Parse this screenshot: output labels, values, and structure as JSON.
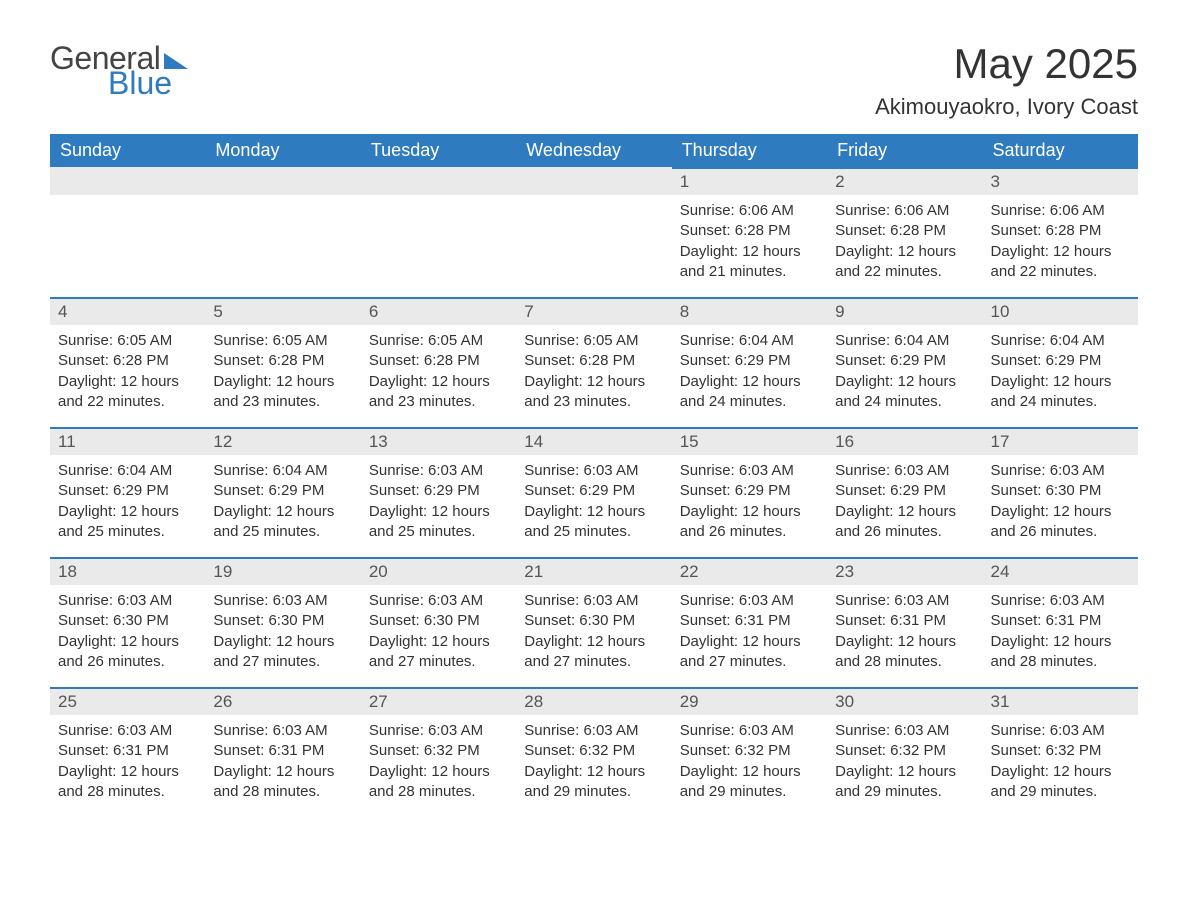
{
  "logo": {
    "word1": "General",
    "word2": "Blue"
  },
  "title": "May 2025",
  "location": "Akimouyaokro, Ivory Coast",
  "colors": {
    "accent": "#2f7bbf",
    "header_stripe_bg": "#eaeaea",
    "text": "#333333",
    "background": "#ffffff"
  },
  "typography": {
    "title_fontsize": 42,
    "location_fontsize": 22,
    "weekday_fontsize": 18,
    "daynum_fontsize": 17,
    "body_fontsize": 15
  },
  "calendar": {
    "type": "table",
    "columns": [
      "Sunday",
      "Monday",
      "Tuesday",
      "Wednesday",
      "Thursday",
      "Friday",
      "Saturday"
    ],
    "first_weekday_index": 4,
    "days": [
      {
        "n": 1,
        "sunrise": "6:06 AM",
        "sunset": "6:28 PM",
        "daylight": "12 hours and 21 minutes."
      },
      {
        "n": 2,
        "sunrise": "6:06 AM",
        "sunset": "6:28 PM",
        "daylight": "12 hours and 22 minutes."
      },
      {
        "n": 3,
        "sunrise": "6:06 AM",
        "sunset": "6:28 PM",
        "daylight": "12 hours and 22 minutes."
      },
      {
        "n": 4,
        "sunrise": "6:05 AM",
        "sunset": "6:28 PM",
        "daylight": "12 hours and 22 minutes."
      },
      {
        "n": 5,
        "sunrise": "6:05 AM",
        "sunset": "6:28 PM",
        "daylight": "12 hours and 23 minutes."
      },
      {
        "n": 6,
        "sunrise": "6:05 AM",
        "sunset": "6:28 PM",
        "daylight": "12 hours and 23 minutes."
      },
      {
        "n": 7,
        "sunrise": "6:05 AM",
        "sunset": "6:28 PM",
        "daylight": "12 hours and 23 minutes."
      },
      {
        "n": 8,
        "sunrise": "6:04 AM",
        "sunset": "6:29 PM",
        "daylight": "12 hours and 24 minutes."
      },
      {
        "n": 9,
        "sunrise": "6:04 AM",
        "sunset": "6:29 PM",
        "daylight": "12 hours and 24 minutes."
      },
      {
        "n": 10,
        "sunrise": "6:04 AM",
        "sunset": "6:29 PM",
        "daylight": "12 hours and 24 minutes."
      },
      {
        "n": 11,
        "sunrise": "6:04 AM",
        "sunset": "6:29 PM",
        "daylight": "12 hours and 25 minutes."
      },
      {
        "n": 12,
        "sunrise": "6:04 AM",
        "sunset": "6:29 PM",
        "daylight": "12 hours and 25 minutes."
      },
      {
        "n": 13,
        "sunrise": "6:03 AM",
        "sunset": "6:29 PM",
        "daylight": "12 hours and 25 minutes."
      },
      {
        "n": 14,
        "sunrise": "6:03 AM",
        "sunset": "6:29 PM",
        "daylight": "12 hours and 25 minutes."
      },
      {
        "n": 15,
        "sunrise": "6:03 AM",
        "sunset": "6:29 PM",
        "daylight": "12 hours and 26 minutes."
      },
      {
        "n": 16,
        "sunrise": "6:03 AM",
        "sunset": "6:29 PM",
        "daylight": "12 hours and 26 minutes."
      },
      {
        "n": 17,
        "sunrise": "6:03 AM",
        "sunset": "6:30 PM",
        "daylight": "12 hours and 26 minutes."
      },
      {
        "n": 18,
        "sunrise": "6:03 AM",
        "sunset": "6:30 PM",
        "daylight": "12 hours and 26 minutes."
      },
      {
        "n": 19,
        "sunrise": "6:03 AM",
        "sunset": "6:30 PM",
        "daylight": "12 hours and 27 minutes."
      },
      {
        "n": 20,
        "sunrise": "6:03 AM",
        "sunset": "6:30 PM",
        "daylight": "12 hours and 27 minutes."
      },
      {
        "n": 21,
        "sunrise": "6:03 AM",
        "sunset": "6:30 PM",
        "daylight": "12 hours and 27 minutes."
      },
      {
        "n": 22,
        "sunrise": "6:03 AM",
        "sunset": "6:31 PM",
        "daylight": "12 hours and 27 minutes."
      },
      {
        "n": 23,
        "sunrise": "6:03 AM",
        "sunset": "6:31 PM",
        "daylight": "12 hours and 28 minutes."
      },
      {
        "n": 24,
        "sunrise": "6:03 AM",
        "sunset": "6:31 PM",
        "daylight": "12 hours and 28 minutes."
      },
      {
        "n": 25,
        "sunrise": "6:03 AM",
        "sunset": "6:31 PM",
        "daylight": "12 hours and 28 minutes."
      },
      {
        "n": 26,
        "sunrise": "6:03 AM",
        "sunset": "6:31 PM",
        "daylight": "12 hours and 28 minutes."
      },
      {
        "n": 27,
        "sunrise": "6:03 AM",
        "sunset": "6:32 PM",
        "daylight": "12 hours and 28 minutes."
      },
      {
        "n": 28,
        "sunrise": "6:03 AM",
        "sunset": "6:32 PM",
        "daylight": "12 hours and 29 minutes."
      },
      {
        "n": 29,
        "sunrise": "6:03 AM",
        "sunset": "6:32 PM",
        "daylight": "12 hours and 29 minutes."
      },
      {
        "n": 30,
        "sunrise": "6:03 AM",
        "sunset": "6:32 PM",
        "daylight": "12 hours and 29 minutes."
      },
      {
        "n": 31,
        "sunrise": "6:03 AM",
        "sunset": "6:32 PM",
        "daylight": "12 hours and 29 minutes."
      }
    ],
    "labels": {
      "sunrise_prefix": "Sunrise: ",
      "sunset_prefix": "Sunset: ",
      "daylight_prefix": "Daylight: "
    }
  }
}
